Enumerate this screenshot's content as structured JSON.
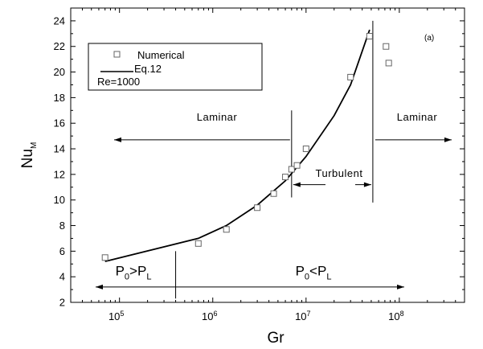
{
  "chart_data": {
    "type": "scatter",
    "xlabel": "Gr",
    "ylabel_main": "Nu",
    "ylabel_sub": "M",
    "x_scale": "log",
    "xlim": [
      30000,
      500000000
    ],
    "ylim": [
      2,
      25
    ],
    "x_tick_labels": [
      {
        "value": 100000,
        "base": "10",
        "exp": "5"
      },
      {
        "value": 1000000,
        "base": "10",
        "exp": "6"
      },
      {
        "value": 10000000,
        "base": "10",
        "exp": "7"
      },
      {
        "value": 100000000,
        "base": "10",
        "exp": "8"
      }
    ],
    "y_ticks": [
      2,
      4,
      6,
      8,
      10,
      12,
      14,
      16,
      18,
      20,
      22,
      24
    ],
    "panel_label": "(a)",
    "legend": {
      "placement": "top-left",
      "entries": [
        {
          "label": "Numerical",
          "marker": "square"
        },
        {
          "label": "Eq.12",
          "marker": "line"
        },
        {
          "label": "Re=1000",
          "marker": "none"
        }
      ]
    },
    "series": [
      {
        "name": "Numerical",
        "kind": "markers",
        "points": [
          [
            70000,
            5.5
          ],
          [
            700000,
            6.6
          ],
          [
            1400000,
            7.7
          ],
          [
            3000000,
            9.4
          ],
          [
            4500000,
            10.5
          ],
          [
            6000000,
            11.8
          ],
          [
            7000000,
            12.4
          ],
          [
            8000000,
            12.7
          ],
          [
            10000000,
            14.0
          ],
          [
            30000000,
            19.6
          ],
          [
            48000000,
            22.8
          ],
          [
            72000000,
            22.0
          ],
          [
            77000000,
            20.7
          ]
        ]
      },
      {
        "name": "Eq.12",
        "kind": "line",
        "points": [
          [
            70000,
            5.2
          ],
          [
            700000,
            7.0
          ],
          [
            1400000,
            8.0
          ],
          [
            3000000,
            9.6
          ],
          [
            6000000,
            11.5
          ],
          [
            10000000,
            13.4
          ],
          [
            20000000,
            16.6
          ],
          [
            30000000,
            19.0
          ],
          [
            48000000,
            23.3
          ]
        ]
      }
    ],
    "annotations": {
      "laminar_left": "Laminar",
      "laminar_right": "Laminar",
      "turbulent": "Turbulent",
      "pressure_left": {
        "p": "P",
        "sub0": "0",
        "op": ">",
        "pl": "P",
        "subL": "L"
      },
      "pressure_right": {
        "p": "P",
        "sub0": "0",
        "op": "<",
        "pl": "P",
        "subL": "L"
      }
    },
    "regions": {
      "transition_start": 7000000,
      "transition_end": 52000000,
      "pressure_boundary": 400000
    }
  }
}
